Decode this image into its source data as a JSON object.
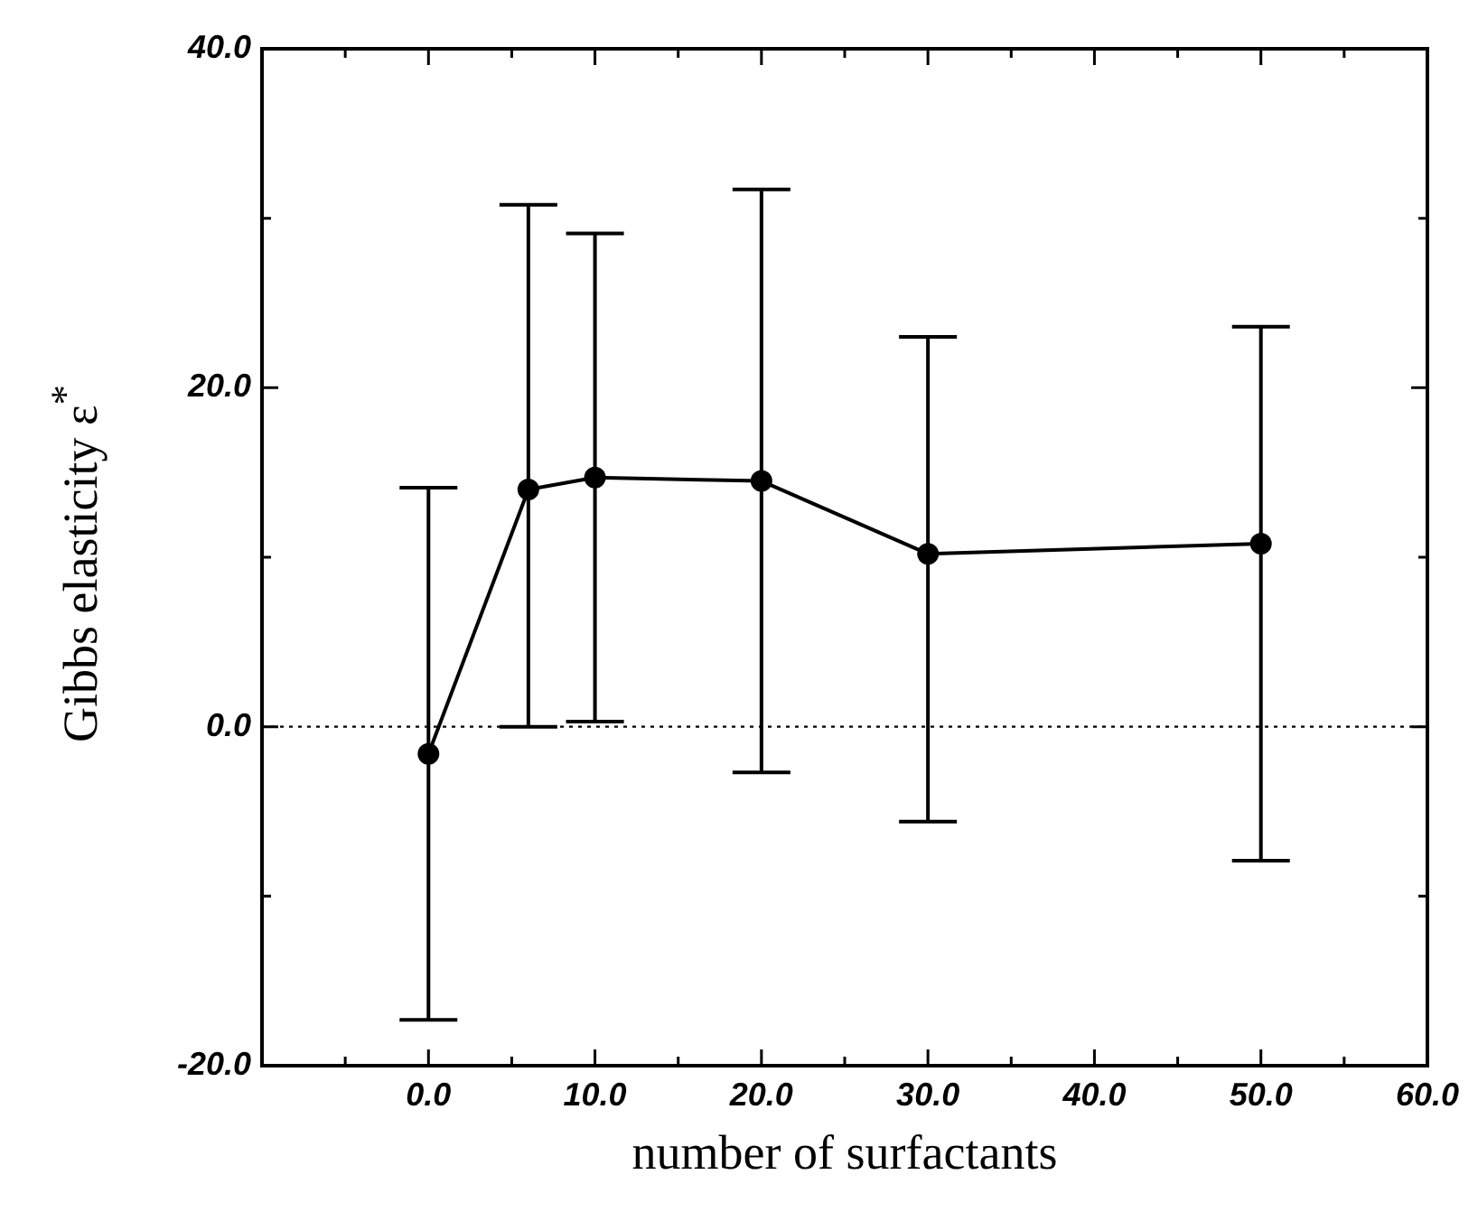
{
  "chart_data": {
    "type": "line",
    "xlabel": "number of surfactants",
    "ylabel": "Gibbs elasticity ε$^{*}$",
    "x": [
      0,
      6,
      10,
      20,
      30,
      50
    ],
    "series": [
      {
        "color": "#000000",
        "values": [
          -1.6,
          14.0,
          14.7,
          14.5,
          10.2,
          10.8
        ],
        "errors": [
          [
            -17.3,
            14.1
          ],
          [
            0.0,
            30.8
          ],
          [
            0.3,
            29.1
          ],
          [
            -2.7,
            31.7
          ],
          [
            -5.6,
            23.0
          ],
          [
            -7.9,
            23.6
          ]
        ]
      }
    ],
    "xlim": [
      -10,
      60
    ],
    "xticks": [
      {
        "value": -5,
        "label": null
      },
      {
        "value": 0,
        "label": "0.0"
      },
      {
        "value": 5,
        "label": null
      },
      {
        "value": 10,
        "label": "10.0"
      },
      {
        "value": 15,
        "label": null
      },
      {
        "value": 20,
        "label": "20.0"
      },
      {
        "value": 25,
        "label": null
      },
      {
        "value": 30,
        "label": "30.0"
      },
      {
        "value": 35,
        "label": null
      },
      {
        "value": 40,
        "label": "40.0"
      },
      {
        "value": 45,
        "label": null
      },
      {
        "value": 50,
        "label": "50.0"
      },
      {
        "value": 55,
        "label": null
      },
      {
        "value": 60,
        "label": "60.0"
      }
    ],
    "ylim": [
      -20,
      40
    ],
    "yticks": [
      {
        "value": -20,
        "label": "-20.0"
      },
      {
        "value": -10,
        "label": null
      },
      {
        "value": 0,
        "label": "0.0"
      },
      {
        "value": 10,
        "label": null
      },
      {
        "value": 20,
        "label": "20.0"
      },
      {
        "value": 30,
        "label": null
      },
      {
        "value": 40,
        "label": "40.0"
      }
    ],
    "ref_lines": [
      {
        "axis": "y",
        "value": 0,
        "line_style": "dotted"
      }
    ],
    "marker": "circle",
    "line_style": "solid",
    "grid": false,
    "legend": false
  }
}
